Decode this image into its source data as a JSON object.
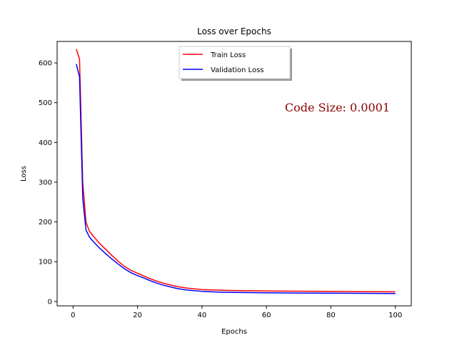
{
  "chart_data": {
    "type": "line",
    "title": "Loss over Epochs",
    "xlabel": "Epochs",
    "ylabel": "Loss",
    "xlim": [
      -4.95,
      104.95
    ],
    "ylim": [
      -11,
      654
    ],
    "xticks": [
      0,
      20,
      40,
      60,
      80,
      100
    ],
    "yticks": [
      0,
      100,
      200,
      300,
      400,
      500,
      600
    ],
    "grid": false,
    "legend_position": "top-center",
    "annotation": {
      "text": "Code Size: 0.0001",
      "color": "#8b0000"
    },
    "series": [
      {
        "name": "Train Loss",
        "color": "#ff0000",
        "x": [
          1,
          2,
          3,
          4,
          5,
          6,
          8,
          10,
          12,
          14,
          16,
          18,
          20,
          22,
          24,
          26,
          28,
          30,
          32,
          35,
          40,
          45,
          50,
          60,
          70,
          80,
          90,
          100
        ],
        "values": [
          635,
          610,
          300,
          200,
          178,
          167,
          148,
          132,
          116,
          101,
          88,
          78,
          71,
          64,
          57,
          51,
          46,
          42,
          38,
          34,
          30,
          28.5,
          27.5,
          26.5,
          25.8,
          25.3,
          24.8,
          24.3
        ]
      },
      {
        "name": "Validation Loss",
        "color": "#0000ff",
        "x": [
          1,
          2,
          3,
          4,
          5,
          6,
          8,
          10,
          12,
          14,
          16,
          18,
          20,
          22,
          24,
          26,
          28,
          30,
          32,
          35,
          40,
          45,
          50,
          60,
          70,
          80,
          90,
          100
        ],
        "values": [
          597,
          565,
          260,
          180,
          163,
          153,
          136,
          121,
          107,
          94,
          82,
          72,
          65,
          59,
          52,
          46,
          41,
          37,
          33,
          29,
          25.5,
          23.7,
          22.7,
          21.8,
          21.2,
          20.8,
          20.4,
          20
        ]
      }
    ]
  }
}
